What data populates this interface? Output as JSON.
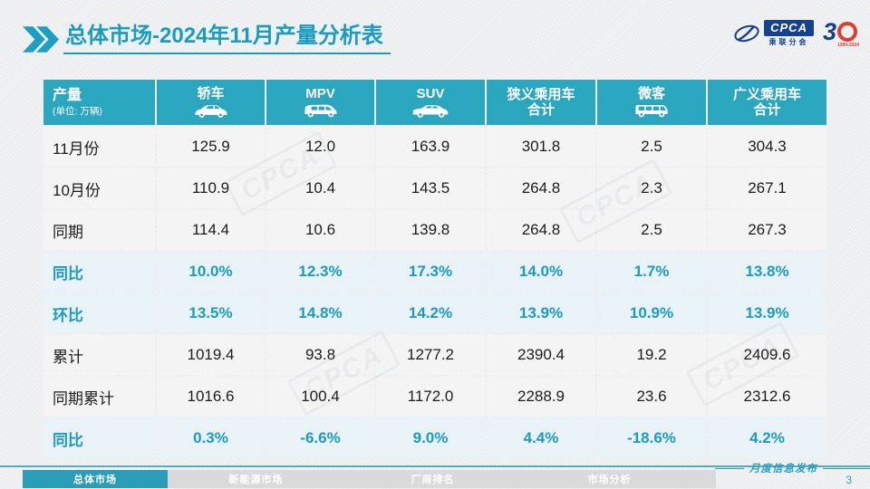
{
  "page": {
    "title_bold": "总体市场",
    "title_rest": "-2024年11月产量分析表",
    "page_number": "3",
    "footer_caption": "月度信息发布"
  },
  "logos": {
    "cpca_text": "CPCA",
    "cpca_sub": "乘联分会",
    "anniversary_number": "3",
    "anniversary_years": "1994-2024"
  },
  "table": {
    "header": {
      "col0_title": "产量",
      "col0_sub": "(单位: 万辆)",
      "columns": [
        {
          "label": "轿车",
          "label2": "",
          "icon": "sedan-icon"
        },
        {
          "label": "MPV",
          "label2": "",
          "icon": "mpv-icon"
        },
        {
          "label": "SUV",
          "label2": "",
          "icon": "suv-icon"
        },
        {
          "label": "狭义乘用车",
          "label2": "合计",
          "icon": ""
        },
        {
          "label": "微客",
          "label2": "",
          "icon": "minibus-icon"
        },
        {
          "label": "广义乘用车",
          "label2": "合计",
          "icon": ""
        }
      ]
    },
    "rows": [
      {
        "label": "11月份",
        "type": "normal",
        "values": [
          "125.9",
          "12.0",
          "163.9",
          "301.8",
          "2.5",
          "304.3"
        ]
      },
      {
        "label": "10月份",
        "type": "normal",
        "values": [
          "110.9",
          "10.4",
          "143.5",
          "264.8",
          "2.3",
          "267.1"
        ]
      },
      {
        "label": "同期",
        "type": "normal",
        "values": [
          "114.4",
          "10.6",
          "139.8",
          "264.8",
          "2.5",
          "267.3"
        ]
      },
      {
        "label": "同比",
        "type": "highlight",
        "values": [
          "10.0%",
          "12.3%",
          "17.3%",
          "14.0%",
          "1.7%",
          "13.8%"
        ]
      },
      {
        "label": "环比",
        "type": "highlight",
        "values": [
          "13.5%",
          "14.8%",
          "14.2%",
          "13.9%",
          "10.9%",
          "13.9%"
        ]
      },
      {
        "label": "累计",
        "type": "normal",
        "values": [
          "1019.4",
          "93.8",
          "1277.2",
          "2390.4",
          "19.2",
          "2409.6"
        ]
      },
      {
        "label": "同期累计",
        "type": "normal",
        "values": [
          "1016.6",
          "100.4",
          "1172.0",
          "2288.9",
          "23.6",
          "2312.6"
        ]
      },
      {
        "label": "同比",
        "type": "highlight",
        "values": [
          "0.3%",
          "-6.6%",
          "9.0%",
          "4.4%",
          "-18.6%",
          "4.2%"
        ]
      }
    ]
  },
  "footer_tabs": [
    {
      "label": "总体市场",
      "active": true
    },
    {
      "label": "新能源市场",
      "active": false
    },
    {
      "label": "厂商排名",
      "active": false
    },
    {
      "label": "市场分析",
      "active": false
    }
  ],
  "colors": {
    "teal_accent": "#1B9CBE",
    "header_bg": "#2BA6BF",
    "highlight_row_bg": "#E9F2F7",
    "normal_row_bg": "#F4F4F5",
    "logo_blue": "#16418C",
    "logo_red": "#E23A2E"
  }
}
